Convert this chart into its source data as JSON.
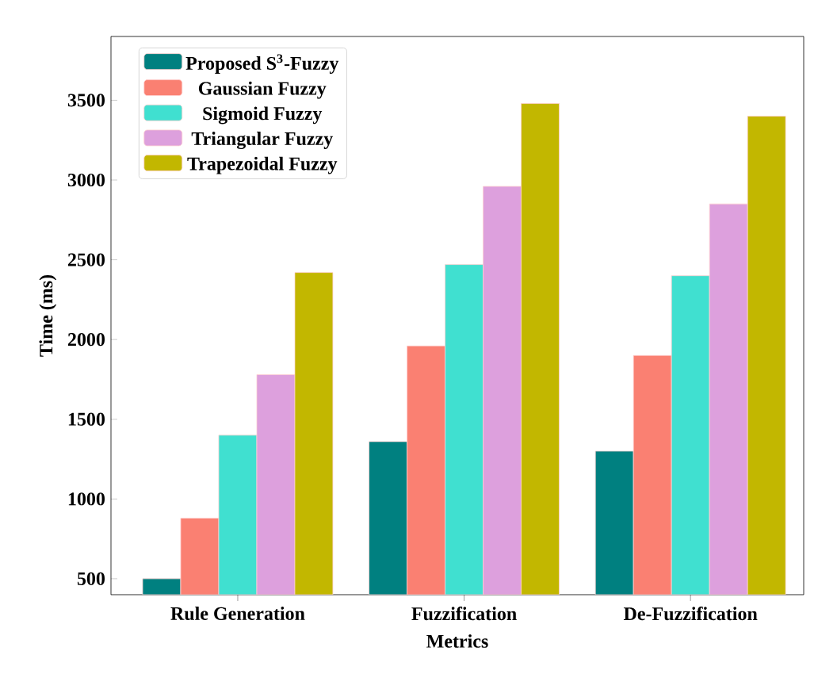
{
  "chart_data": {
    "type": "bar",
    "xlabel": "Metrics",
    "ylabel": "Time (ms)",
    "categories": [
      "Rule Generation",
      "Fuzzification",
      "De-Fuzzification"
    ],
    "series": [
      {
        "name": "Proposed S$^{3}$-Fuzzy",
        "color": "#008080",
        "values": [
          500,
          1360,
          1300
        ]
      },
      {
        "name": "Gaussian Fuzzy",
        "color": "#fa8072",
        "values": [
          880,
          1960,
          1900
        ]
      },
      {
        "name": "Sigmoid Fuzzy",
        "color": "#40e0d0",
        "values": [
          1400,
          2470,
          2400
        ]
      },
      {
        "name": "Triangular Fuzzy",
        "color": "#dda0dd",
        "values": [
          1780,
          2960,
          2850
        ]
      },
      {
        "name": "Trapezoidal Fuzzy",
        "color": "#c2b700",
        "values": [
          2420,
          3480,
          3400
        ]
      }
    ],
    "ylim": [
      400,
      3900
    ],
    "yticks": [
      500,
      1000,
      1500,
      2000,
      2500,
      3000,
      3500
    ],
    "legend": "top left",
    "grid": false
  }
}
